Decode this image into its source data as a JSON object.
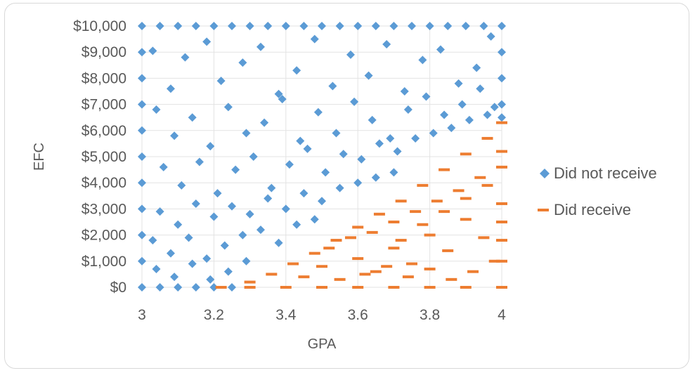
{
  "chart_data": {
    "type": "scatter",
    "title": "",
    "xlabel": "GPA",
    "ylabel": "EFC",
    "xlim": [
      3,
      4
    ],
    "ylim": [
      0,
      10000
    ],
    "x_ticks": [
      {
        "value": 3,
        "label": "3"
      },
      {
        "value": 3.2,
        "label": "3.2"
      },
      {
        "value": 3.4,
        "label": "3.4"
      },
      {
        "value": 3.6,
        "label": "3.6"
      },
      {
        "value": 3.8,
        "label": "3.8"
      },
      {
        "value": 4,
        "label": "4"
      }
    ],
    "y_ticks": [
      {
        "value": 0,
        "label": "$0"
      },
      {
        "value": 1000,
        "label": "$1,000"
      },
      {
        "value": 2000,
        "label": "$2,000"
      },
      {
        "value": 3000,
        "label": "$3,000"
      },
      {
        "value": 4000,
        "label": "$4,000"
      },
      {
        "value": 5000,
        "label": "$5,000"
      },
      {
        "value": 6000,
        "label": "$6,000"
      },
      {
        "value": 7000,
        "label": "$7,000"
      },
      {
        "value": 8000,
        "label": "$8,000"
      },
      {
        "value": 9000,
        "label": "$9,000"
      },
      {
        "value": 10000,
        "label": "$10,000"
      }
    ],
    "grid": "horizontal",
    "legend_position": "right",
    "series": [
      {
        "name": "Did not receive",
        "marker": "diamond",
        "color": "#5b9bd5",
        "points": [
          [
            3.0,
            10000
          ],
          [
            3.05,
            10000
          ],
          [
            3.1,
            10000
          ],
          [
            3.15,
            10000
          ],
          [
            3.2,
            10000
          ],
          [
            3.25,
            10000
          ],
          [
            3.3,
            10000
          ],
          [
            3.35,
            10000
          ],
          [
            3.4,
            10000
          ],
          [
            3.45,
            10000
          ],
          [
            3.5,
            10000
          ],
          [
            3.55,
            10000
          ],
          [
            3.6,
            10000
          ],
          [
            3.65,
            10000
          ],
          [
            3.7,
            10000
          ],
          [
            3.75,
            10000
          ],
          [
            3.8,
            10000
          ],
          [
            3.85,
            10000
          ],
          [
            3.9,
            10000
          ],
          [
            3.95,
            10000
          ],
          [
            4.0,
            10000
          ],
          [
            3.0,
            9000
          ],
          [
            3.0,
            8000
          ],
          [
            3.0,
            7000
          ],
          [
            3.0,
            6000
          ],
          [
            3.0,
            5000
          ],
          [
            3.0,
            4000
          ],
          [
            3.0,
            3000
          ],
          [
            3.0,
            2000
          ],
          [
            3.0,
            1000
          ],
          [
            3.0,
            0
          ],
          [
            3.05,
            0
          ],
          [
            3.1,
            0
          ],
          [
            3.15,
            0
          ],
          [
            3.2,
            0
          ],
          [
            3.25,
            0
          ],
          [
            4.0,
            9000
          ],
          [
            4.0,
            8000
          ],
          [
            4.0,
            7000
          ],
          [
            4.0,
            6500
          ],
          [
            3.03,
            9050
          ],
          [
            3.08,
            7600
          ],
          [
            3.12,
            8800
          ],
          [
            3.18,
            9400
          ],
          [
            3.22,
            7900
          ],
          [
            3.28,
            8600
          ],
          [
            3.33,
            9200
          ],
          [
            3.38,
            7400
          ],
          [
            3.43,
            8300
          ],
          [
            3.48,
            9500
          ],
          [
            3.53,
            7700
          ],
          [
            3.58,
            8900
          ],
          [
            3.63,
            8100
          ],
          [
            3.68,
            9300
          ],
          [
            3.73,
            7500
          ],
          [
            3.78,
            8700
          ],
          [
            3.83,
            9100
          ],
          [
            3.88,
            7800
          ],
          [
            3.93,
            8400
          ],
          [
            3.97,
            9600
          ],
          [
            3.04,
            6800
          ],
          [
            3.09,
            5800
          ],
          [
            3.14,
            6500
          ],
          [
            3.19,
            5400
          ],
          [
            3.24,
            6900
          ],
          [
            3.29,
            5900
          ],
          [
            3.34,
            6300
          ],
          [
            3.39,
            7200
          ],
          [
            3.44,
            5600
          ],
          [
            3.49,
            6700
          ],
          [
            3.54,
            5900
          ],
          [
            3.59,
            7100
          ],
          [
            3.64,
            6400
          ],
          [
            3.69,
            5700
          ],
          [
            3.74,
            6800
          ],
          [
            3.79,
            7300
          ],
          [
            3.84,
            6600
          ],
          [
            3.89,
            7000
          ],
          [
            3.94,
            7600
          ],
          [
            3.98,
            6900
          ],
          [
            3.06,
            4600
          ],
          [
            3.11,
            3900
          ],
          [
            3.16,
            4800
          ],
          [
            3.21,
            3600
          ],
          [
            3.26,
            4500
          ],
          [
            3.31,
            5000
          ],
          [
            3.36,
            3800
          ],
          [
            3.41,
            4700
          ],
          [
            3.46,
            5300
          ],
          [
            3.51,
            4400
          ],
          [
            3.56,
            5100
          ],
          [
            3.61,
            4900
          ],
          [
            3.66,
            5500
          ],
          [
            3.71,
            5200
          ],
          [
            3.76,
            5700
          ],
          [
            3.81,
            5900
          ],
          [
            3.86,
            6100
          ],
          [
            3.91,
            6400
          ],
          [
            3.96,
            6600
          ],
          [
            3.05,
            2900
          ],
          [
            3.1,
            2400
          ],
          [
            3.15,
            3200
          ],
          [
            3.2,
            2700
          ],
          [
            3.25,
            3100
          ],
          [
            3.3,
            2800
          ],
          [
            3.35,
            3400
          ],
          [
            3.4,
            3000
          ],
          [
            3.45,
            3600
          ],
          [
            3.5,
            3300
          ],
          [
            3.55,
            3800
          ],
          [
            3.6,
            4000
          ],
          [
            3.65,
            4200
          ],
          [
            3.7,
            4400
          ],
          [
            3.03,
            1800
          ],
          [
            3.08,
            1300
          ],
          [
            3.13,
            1900
          ],
          [
            3.18,
            1100
          ],
          [
            3.23,
            1600
          ],
          [
            3.28,
            2000
          ],
          [
            3.33,
            2200
          ],
          [
            3.38,
            1700
          ],
          [
            3.43,
            2400
          ],
          [
            3.48,
            2600
          ],
          [
            3.04,
            700
          ],
          [
            3.09,
            400
          ],
          [
            3.14,
            900
          ],
          [
            3.19,
            300
          ],
          [
            3.24,
            600
          ],
          [
            3.29,
            1000
          ]
        ]
      },
      {
        "name": "Did receive",
        "marker": "dash",
        "color": "#ed7d31",
        "points": [
          [
            3.22,
            0
          ],
          [
            3.3,
            0
          ],
          [
            3.4,
            0
          ],
          [
            3.5,
            0
          ],
          [
            3.6,
            0
          ],
          [
            3.7,
            0
          ],
          [
            3.8,
            0
          ],
          [
            3.9,
            0
          ],
          [
            4.0,
            0
          ],
          [
            3.3,
            200
          ],
          [
            3.36,
            500
          ],
          [
            3.42,
            900
          ],
          [
            3.48,
            1300
          ],
          [
            3.54,
            1800
          ],
          [
            3.6,
            2300
          ],
          [
            3.66,
            2800
          ],
          [
            3.72,
            3300
          ],
          [
            3.78,
            3900
          ],
          [
            3.84,
            4500
          ],
          [
            3.9,
            5100
          ],
          [
            3.96,
            5700
          ],
          [
            4.0,
            6300
          ],
          [
            3.45,
            400
          ],
          [
            3.5,
            800
          ],
          [
            3.55,
            300
          ],
          [
            3.6,
            1100
          ],
          [
            3.65,
            600
          ],
          [
            3.7,
            1500
          ],
          [
            3.75,
            900
          ],
          [
            3.8,
            2000
          ],
          [
            3.85,
            1400
          ],
          [
            3.9,
            2600
          ],
          [
            3.95,
            1900
          ],
          [
            4.0,
            3200
          ],
          [
            3.52,
            1500
          ],
          [
            3.58,
            1900
          ],
          [
            3.64,
            2100
          ],
          [
            3.7,
            2500
          ],
          [
            3.76,
            2900
          ],
          [
            3.82,
            3300
          ],
          [
            3.88,
            3700
          ],
          [
            3.94,
            4200
          ],
          [
            4.0,
            4600
          ],
          [
            3.62,
            500
          ],
          [
            3.68,
            800
          ],
          [
            3.74,
            400
          ],
          [
            3.8,
            700
          ],
          [
            3.86,
            300
          ],
          [
            3.92,
            600
          ],
          [
            3.98,
            1000
          ],
          [
            3.72,
            1800
          ],
          [
            3.78,
            2400
          ],
          [
            3.84,
            2900
          ],
          [
            3.9,
            3400
          ],
          [
            3.96,
            3900
          ],
          [
            4.0,
            1800
          ],
          [
            4.0,
            1000
          ],
          [
            4.0,
            2500
          ],
          [
            4.0,
            5200
          ]
        ]
      }
    ]
  }
}
